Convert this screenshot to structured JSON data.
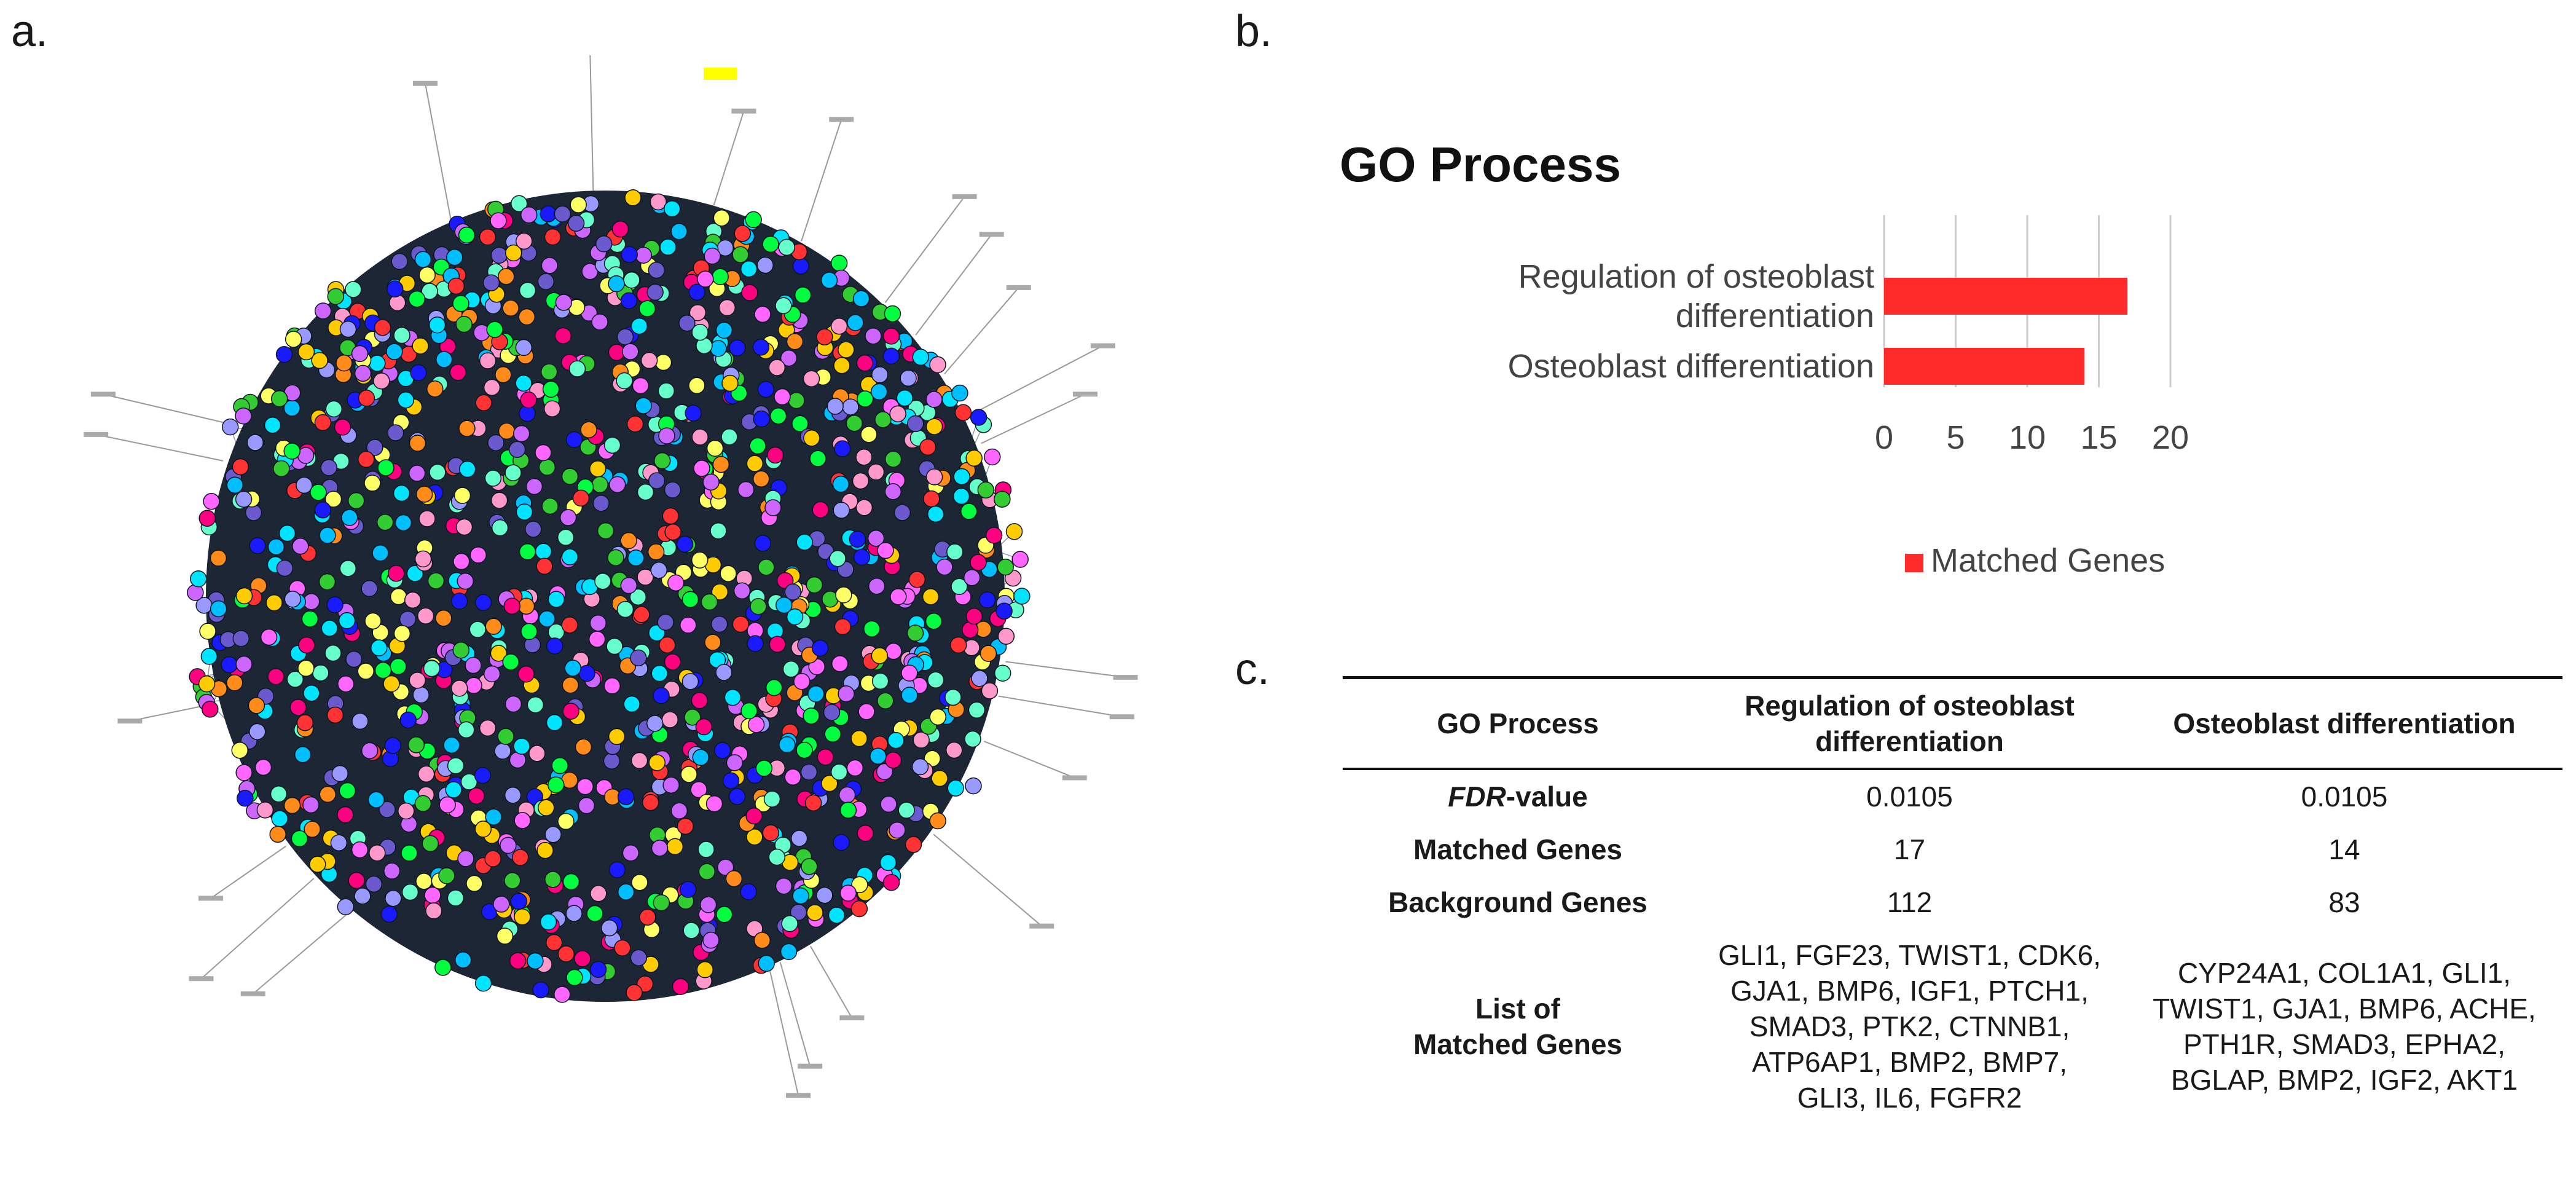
{
  "panels": {
    "a": "a.",
    "b": "b.",
    "c": "c."
  },
  "network": {
    "palette": [
      "#00e5ff",
      "#ff0080",
      "#00ff40",
      "#ffff66",
      "#ff8c1a",
      "#6a5acd",
      "#1a1aff",
      "#ff3333",
      "#cc66ff",
      "#66ffcc",
      "#ff99cc",
      "#33cc33",
      "#ffcc00",
      "#9999ff",
      "#ff66ff",
      "#00bfff"
    ]
  },
  "chart_data": {
    "type": "bar",
    "orientation": "horizontal",
    "title": "GO Process",
    "categories": [
      "Regulation of osteoblast differentiation",
      "Osteoblast differentiation"
    ],
    "category_lines": [
      [
        "Regulation of osteoblast",
        "differentiation"
      ],
      [
        "Osteoblast differentiation"
      ]
    ],
    "series": [
      {
        "name": "Matched Genes",
        "values": [
          17,
          14
        ],
        "color": "#ff2a2a"
      }
    ],
    "xlim": [
      0,
      20
    ],
    "xticks": [
      "0",
      "5",
      "10",
      "15",
      "20"
    ],
    "grid": true,
    "legend": "bottom-left"
  },
  "table": {
    "headers": {
      "col0": "GO Process",
      "col1_line1": "Regulation of osteoblast",
      "col1_line2": "differentiation",
      "col2": "Osteoblast differentiation"
    },
    "fdr": {
      "label_italic": "FDR",
      "label_rest": "-value",
      "v1": "0.0105",
      "v2": "0.0105"
    },
    "matched": {
      "label": "Matched Genes",
      "v1": "17",
      "v2": "14"
    },
    "background": {
      "label": "Background Genes",
      "v1": "112",
      "v2": "83"
    },
    "list": {
      "label_line1": "List of",
      "label_line2": "Matched Genes",
      "genes1": [
        "GLI1, FGF23, TWIST1, CDK6,",
        "GJA1, BMP6, IGF1, PTCH1,",
        "SMAD3, PTK2, CTNNB1,",
        "ATP6AP1, BMP2, BMP7,",
        "GLI3, IL6, FGFR2"
      ],
      "genes2": [
        "CYP24A1, COL1A1, GLI1,",
        "TWIST1, GJA1, BMP6, ACHE,",
        "PTH1R, SMAD3, EPHA2,",
        "BGLAP, BMP2, IGF2, AKT1"
      ]
    }
  }
}
